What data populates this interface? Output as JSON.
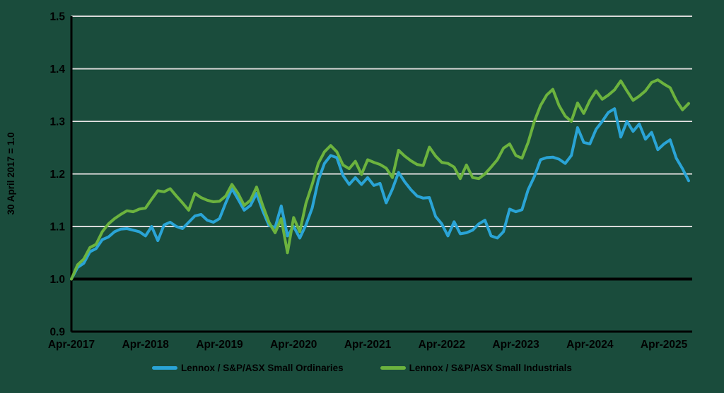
{
  "colors": {
    "background": "#1a4c3c",
    "gridline": "#d9d9d9",
    "baseline": "#000000",
    "axis": "#000000",
    "text": "#000000",
    "ordinaries_blue": "#2aa4d6",
    "industrials_green": "#6cb33e"
  },
  "chart_data": {
    "type": "line",
    "title": "",
    "xlabel": "",
    "ylabel": "30 April 2017 = 1.0",
    "ylim": [
      0.9,
      1.5
    ],
    "yticks": [
      "1.5",
      "1.4",
      "1.3",
      "1.2",
      "1.1",
      "1.0",
      "0.9"
    ],
    "ytick_values": [
      1.5,
      1.4,
      1.3,
      1.2,
      1.1,
      1.0,
      0.9
    ],
    "baseline_value": 1.0,
    "grid": "horizontal-only",
    "legend_position": "bottom-center",
    "x_unit": "month",
    "x_start": "Apr-2017",
    "x_end": "Aug-2025",
    "xtick_labels": [
      "Apr-2017",
      "Apr-2018",
      "Apr-2019",
      "Apr-2020",
      "Apr-2021",
      "Apr-2022",
      "Apr-2023",
      "Apr-2024",
      "Apr-2025"
    ],
    "xtick_month_interval": 12,
    "series": [
      {
        "name": "Lennox / S&P/ASX Small Ordinaries",
        "color": "#2aa4d6",
        "values": [
          1.0,
          1.022,
          1.03,
          1.052,
          1.058,
          1.075,
          1.08,
          1.09,
          1.095,
          1.096,
          1.093,
          1.09,
          1.082,
          1.1,
          1.073,
          1.103,
          1.108,
          1.1,
          1.096,
          1.108,
          1.12,
          1.123,
          1.112,
          1.108,
          1.115,
          1.145,
          1.172,
          1.152,
          1.131,
          1.14,
          1.163,
          1.13,
          1.102,
          1.098,
          1.139,
          1.082,
          1.1,
          1.078,
          1.103,
          1.135,
          1.188,
          1.22,
          1.235,
          1.231,
          1.197,
          1.18,
          1.193,
          1.18,
          1.193,
          1.178,
          1.182,
          1.145,
          1.171,
          1.203,
          1.185,
          1.17,
          1.158,
          1.154,
          1.155,
          1.119,
          1.105,
          1.082,
          1.109,
          1.086,
          1.088,
          1.093,
          1.105,
          1.112,
          1.082,
          1.078,
          1.09,
          1.133,
          1.128,
          1.132,
          1.17,
          1.195,
          1.227,
          1.231,
          1.232,
          1.228,
          1.22,
          1.235,
          1.288,
          1.26,
          1.257,
          1.285,
          1.3,
          1.317,
          1.324,
          1.27,
          1.3,
          1.281,
          1.295,
          1.266,
          1.279,
          1.246,
          1.257,
          1.265,
          1.23,
          1.21,
          1.187
        ]
      },
      {
        "name": "Lennox / S&P/ASX Small Industrials",
        "color": "#6cb33e",
        "values": [
          1.0,
          1.027,
          1.038,
          1.06,
          1.066,
          1.09,
          1.105,
          1.115,
          1.123,
          1.13,
          1.128,
          1.133,
          1.135,
          1.152,
          1.168,
          1.166,
          1.172,
          1.158,
          1.145,
          1.131,
          1.163,
          1.155,
          1.15,
          1.147,
          1.148,
          1.158,
          1.18,
          1.163,
          1.14,
          1.15,
          1.175,
          1.14,
          1.108,
          1.088,
          1.115,
          1.05,
          1.117,
          1.09,
          1.144,
          1.18,
          1.22,
          1.242,
          1.254,
          1.242,
          1.217,
          1.21,
          1.224,
          1.199,
          1.227,
          1.222,
          1.218,
          1.211,
          1.193,
          1.245,
          1.234,
          1.225,
          1.218,
          1.216,
          1.251,
          1.234,
          1.222,
          1.22,
          1.213,
          1.191,
          1.217,
          1.193,
          1.191,
          1.2,
          1.213,
          1.227,
          1.249,
          1.257,
          1.235,
          1.23,
          1.26,
          1.3,
          1.33,
          1.35,
          1.361,
          1.33,
          1.31,
          1.3,
          1.335,
          1.315,
          1.34,
          1.358,
          1.342,
          1.35,
          1.36,
          1.377,
          1.358,
          1.34,
          1.348,
          1.358,
          1.374,
          1.379,
          1.371,
          1.364,
          1.34,
          1.322,
          1.334
        ]
      }
    ]
  },
  "legend": {
    "ordinaries_label": "Lennox / S&P/ASX Small Ordinaries",
    "industrials_label": "Lennox / S&P/ASX Small Industrials"
  }
}
